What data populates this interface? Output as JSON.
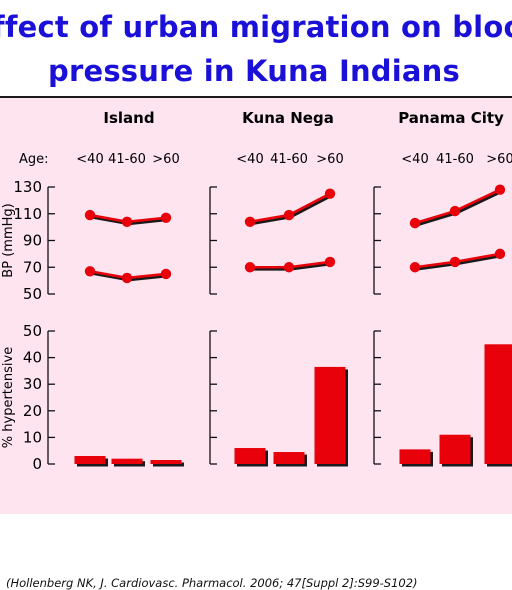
{
  "title": {
    "line1": "ffect of urban migration on bloo",
    "line2": "pressure in Kuna Indians"
  },
  "citation": "(Hollenberg NK, J. Cardiovasc. Pharmacol. 2006; 47[Suppl 2]:S99-S102)",
  "age_label": "Age:",
  "colors": {
    "title": "#1a10d8",
    "background": "#fde4ef",
    "series": "#e8000a",
    "axis": "#111111"
  },
  "chart_data": [
    {
      "type": "line",
      "ylabel": "BP (mmHg)",
      "ylim": [
        50,
        130
      ],
      "yticks": [
        50,
        70,
        90,
        110,
        130
      ],
      "panels": [
        {
          "name": "Island",
          "categories": [
            "<40",
            "41-60",
            ">60"
          ],
          "series": [
            {
              "values": [
                109,
                104,
                107
              ]
            },
            {
              "values": [
                67,
                62,
                65
              ]
            }
          ]
        },
        {
          "name": "Kuna Nega",
          "categories": [
            "<40",
            "41-60",
            ">60"
          ],
          "series": [
            {
              "values": [
                104,
                109,
                125
              ]
            },
            {
              "values": [
                70,
                70,
                74
              ]
            }
          ]
        },
        {
          "name": "Panama City",
          "categories": [
            "<40",
            "41-60",
            ">60"
          ],
          "series": [
            {
              "values": [
                103,
                112,
                128
              ]
            },
            {
              "values": [
                70,
                74,
                80
              ]
            }
          ]
        }
      ]
    },
    {
      "type": "bar",
      "ylabel": "% hypertensive",
      "ylim": [
        0,
        50
      ],
      "yticks": [
        0,
        10,
        20,
        30,
        40,
        50
      ],
      "panels": [
        {
          "name": "Island",
          "categories": [
            "<40",
            "41-60",
            ">60"
          ],
          "values": [
            3,
            2,
            1.5
          ]
        },
        {
          "name": "Kuna Nega",
          "categories": [
            "<40",
            "41-60",
            ">60"
          ],
          "values": [
            6,
            4.5,
            36.5
          ]
        },
        {
          "name": "Panama City",
          "categories": [
            "<40",
            "41-60",
            ">60"
          ],
          "values": [
            5.5,
            11,
            45
          ]
        }
      ]
    }
  ]
}
